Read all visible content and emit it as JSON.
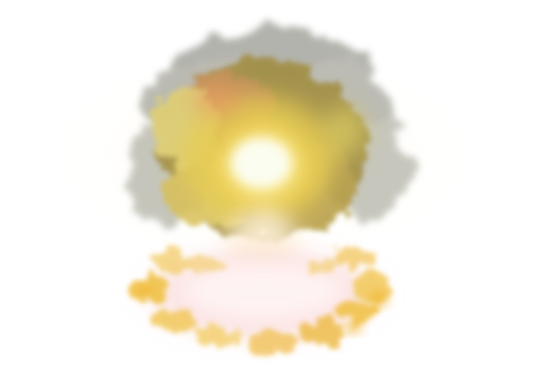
{
  "image": {
    "subject": "explosion-fireball",
    "background_color": "#ffffff"
  },
  "palette": {
    "smoke_gray": "#8a8a80",
    "smoke_olive": "#9a8c3a",
    "fire_yellow": "#e8cc4a",
    "fire_orange": "#e8a040",
    "core_white": "#fffbe6",
    "ring_pink": "#f0b8b8",
    "ring_gold": "#f0c040"
  }
}
